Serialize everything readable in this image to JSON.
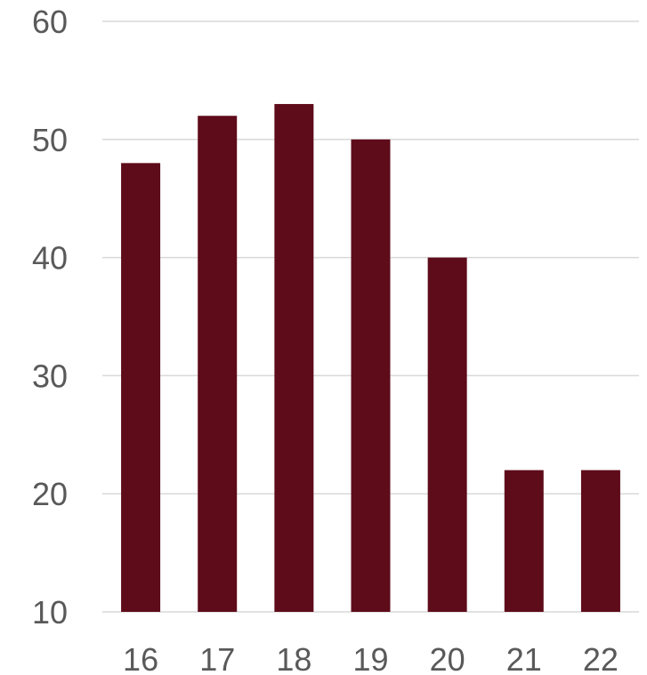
{
  "chart_data": {
    "type": "bar",
    "categories": [
      "16",
      "17",
      "18",
      "19",
      "20",
      "21",
      "22"
    ],
    "values": [
      48,
      52,
      53,
      50,
      40,
      22,
      22
    ],
    "ylim": [
      10,
      60
    ],
    "yticks": [
      10,
      20,
      30,
      40,
      50,
      60
    ],
    "title": "",
    "xlabel": "",
    "ylabel": "",
    "grid": true,
    "legend": "none",
    "bar_color": "#5e0b1a",
    "grid_color": "#d9d9d9",
    "tick_color": "#595959"
  }
}
